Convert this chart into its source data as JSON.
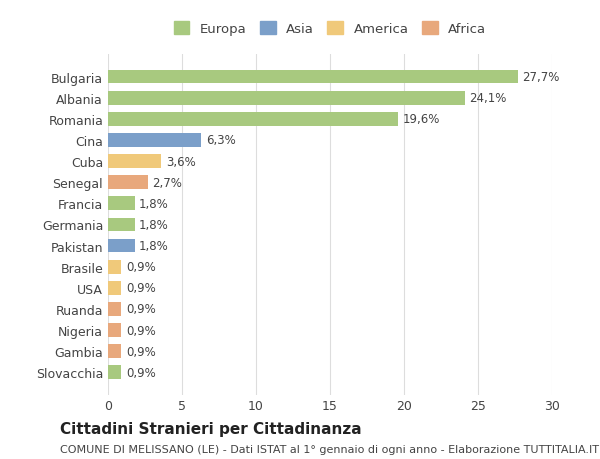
{
  "categories": [
    "Bulgaria",
    "Albania",
    "Romania",
    "Cina",
    "Cuba",
    "Senegal",
    "Francia",
    "Germania",
    "Pakistan",
    "Brasile",
    "USA",
    "Ruanda",
    "Nigeria",
    "Gambia",
    "Slovacchia"
  ],
  "values": [
    27.7,
    24.1,
    19.6,
    6.3,
    3.6,
    2.7,
    1.8,
    1.8,
    1.8,
    0.9,
    0.9,
    0.9,
    0.9,
    0.9,
    0.9
  ],
  "labels": [
    "27,7%",
    "24,1%",
    "19,6%",
    "6,3%",
    "3,6%",
    "2,7%",
    "1,8%",
    "1,8%",
    "1,8%",
    "0,9%",
    "0,9%",
    "0,9%",
    "0,9%",
    "0,9%",
    "0,9%"
  ],
  "colors": [
    "#a8c97f",
    "#a8c97f",
    "#a8c97f",
    "#7b9fc9",
    "#f0c97a",
    "#e8a87c",
    "#a8c97f",
    "#a8c97f",
    "#7b9fc9",
    "#f0c97a",
    "#f0c97a",
    "#e8a87c",
    "#e8a87c",
    "#e8a87c",
    "#a8c97f"
  ],
  "legend_labels": [
    "Europa",
    "Asia",
    "America",
    "Africa"
  ],
  "legend_colors": [
    "#a8c97f",
    "#7b9fc9",
    "#f0c97a",
    "#e8a87c"
  ],
  "title": "Cittadini Stranieri per Cittadinanza",
  "subtitle": "COMUNE DI MELISSANO (LE) - Dati ISTAT al 1° gennaio di ogni anno - Elaborazione TUTTITALIA.IT",
  "xlim": [
    0,
    30
  ],
  "xticks": [
    0,
    5,
    10,
    15,
    20,
    25,
    30
  ],
  "background_color": "#ffffff",
  "grid_color": "#dddddd",
  "bar_height": 0.65,
  "label_fontsize": 8.5,
  "tick_fontsize": 9,
  "title_fontsize": 11,
  "subtitle_fontsize": 8
}
